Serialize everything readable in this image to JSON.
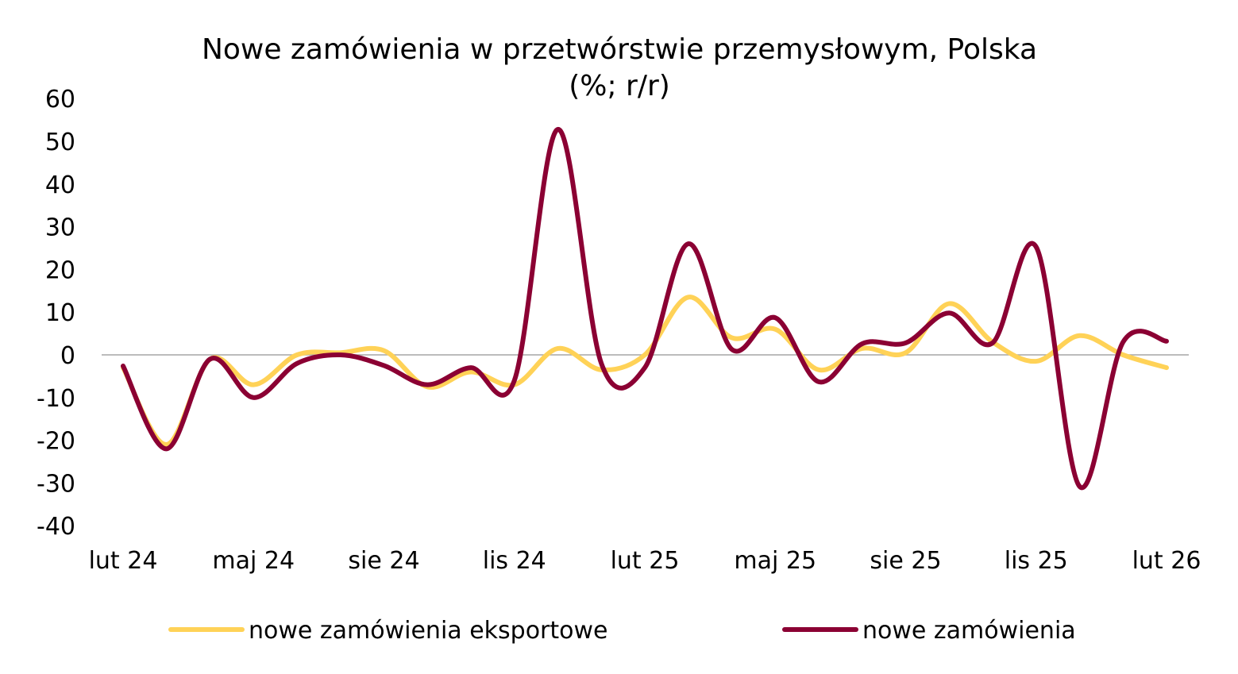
{
  "chart_data": {
    "type": "line",
    "title": "Nowe zamówienia w przetwórstwie przemysłowym, Polska",
    "subtitle": "(%; r/r)",
    "xlabel": "",
    "ylabel": "",
    "ylim": [
      -40,
      60
    ],
    "yticks": [
      "60",
      "50",
      "40",
      "30",
      "20",
      "10",
      "0",
      "-10",
      "-20",
      "-30",
      "-40"
    ],
    "ytick_values": [
      60,
      50,
      40,
      30,
      20,
      10,
      0,
      -10,
      -20,
      -30,
      -40
    ],
    "x": [
      "lut 24",
      "mar 24",
      "kwi 24",
      "maj 24",
      "cze 24",
      "lip 24",
      "sie 24",
      "wrz 24",
      "paź 24",
      "lis 24",
      "gru 24",
      "sty 25",
      "lut 25",
      "mar 25",
      "kwi 25",
      "maj 25",
      "cze 25",
      "lip 25",
      "sie 25",
      "wrz 25",
      "paź 25",
      "lis 25",
      "gru 25",
      "sty 26",
      "lut 26"
    ],
    "xtick_labels": [
      "lut 24",
      "maj 24",
      "sie 24",
      "lis 24",
      "lut 25",
      "maj 25",
      "sie 25",
      "lis 25",
      "lut 26"
    ],
    "grid": false,
    "legend_position": "bottom",
    "series": [
      {
        "name": "nowe zamówienia eksportowe",
        "color": "#FFD257",
        "values": [
          -3,
          -21,
          -1,
          -7,
          0,
          0.5,
          1,
          -7.5,
          -4,
          -7,
          1.5,
          -3.5,
          0,
          13.5,
          4,
          6,
          -3.5,
          1.5,
          0.5,
          12,
          3,
          -1.5,
          4.5,
          0,
          -3
        ]
      },
      {
        "name": "nowe zamówienia",
        "color": "#8B0033",
        "values": [
          -2.6,
          -22,
          -1,
          -10,
          -2,
          0,
          -2.5,
          -7,
          -3,
          -6,
          52.8,
          -2,
          -3,
          26,
          1.3,
          8.7,
          -6.3,
          2.6,
          2.8,
          9.8,
          2.8,
          25.3,
          -30.8,
          3,
          3.2
        ]
      }
    ]
  }
}
